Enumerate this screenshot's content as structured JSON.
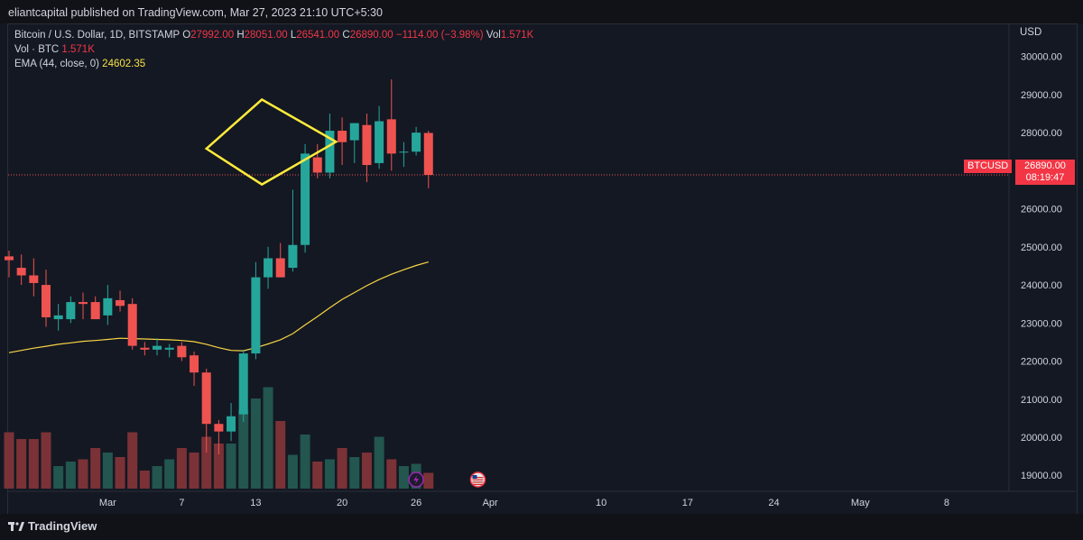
{
  "header": {
    "published": "eliantcapital published on TradingView.com, Mar 27, 2023 21:10 UTC+5:30"
  },
  "legend": {
    "symbol": "Bitcoin / U.S. Dollar, 1D, BITSTAMP",
    "o_label": "O",
    "o": "27992.00",
    "h_label": "H",
    "h": "28051.00",
    "l_label": "L",
    "l": "26541.00",
    "c_label": "C",
    "c": "26890.00",
    "change": "−1114.00 (−3.98%)",
    "vol_label": "Vol",
    "vol": "1.571K",
    "vol_line_label": "Vol · BTC",
    "vol_line_value": "1.571K",
    "ema_label": "EMA (44, close, 0)",
    "ema_value": "24602.35"
  },
  "axis": {
    "currency": "USD"
  },
  "price_tag": {
    "symbol": "BTCUSD",
    "price": "26890.00",
    "countdown": "08:19:47"
  },
  "footer": {
    "brand": "TradingView"
  },
  "colors": {
    "up": "#26a69a",
    "down": "#ef5350",
    "ema": "#f7d544",
    "pattern": "#ffeb3b",
    "background": "#131722"
  },
  "icons": {
    "flash": "lightning-icon",
    "flag": "us-flag-icon"
  },
  "chart_data": {
    "type": "candlestick",
    "ylim": [
      18650,
      30300
    ],
    "y_ticks": [
      19000,
      20000,
      21000,
      22000,
      23000,
      24000,
      25000,
      26000,
      27000,
      28000,
      29000,
      30000
    ],
    "y_tick_labels": [
      "19000.00",
      "20000.00",
      "21000.00",
      "22000.00",
      "23000.00",
      "24000.00",
      "25000.00",
      "26000.00",
      "27000.00",
      "28000.00",
      "29000.00",
      "30000.00"
    ],
    "x_labels": [
      {
        "label": "Mar",
        "i": 8
      },
      {
        "label": "7",
        "i": 14
      },
      {
        "label": "13",
        "i": 20
      },
      {
        "label": "20",
        "i": 27
      },
      {
        "label": "26",
        "i": 33
      },
      {
        "label": "Apr",
        "i": 39
      },
      {
        "label": "10",
        "i": 48
      },
      {
        "label": "17",
        "i": 55
      },
      {
        "label": "24",
        "i": 62
      },
      {
        "label": "May",
        "i": 69
      },
      {
        "label": "8",
        "i": 76
      }
    ],
    "candles": [
      {
        "o": 24750,
        "h": 24900,
        "l": 24200,
        "c": 24650
      },
      {
        "o": 24450,
        "h": 24800,
        "l": 24000,
        "c": 24250
      },
      {
        "o": 24250,
        "h": 24700,
        "l": 23700,
        "c": 24050
      },
      {
        "o": 24000,
        "h": 24400,
        "l": 22900,
        "c": 23150
      },
      {
        "o": 23100,
        "h": 23500,
        "l": 22800,
        "c": 23200
      },
      {
        "o": 23100,
        "h": 23700,
        "l": 23000,
        "c": 23550
      },
      {
        "o": 23550,
        "h": 23800,
        "l": 23100,
        "c": 23500
      },
      {
        "o": 23550,
        "h": 23700,
        "l": 23100,
        "c": 23100
      },
      {
        "o": 23200,
        "h": 24000,
        "l": 22950,
        "c": 23650
      },
      {
        "o": 23600,
        "h": 23850,
        "l": 23300,
        "c": 23450
      },
      {
        "o": 23500,
        "h": 23650,
        "l": 22300,
        "c": 22400
      },
      {
        "o": 22350,
        "h": 22500,
        "l": 22150,
        "c": 22300
      },
      {
        "o": 22300,
        "h": 22600,
        "l": 22150,
        "c": 22400
      },
      {
        "o": 22300,
        "h": 22450,
        "l": 22100,
        "c": 22350
      },
      {
        "o": 22400,
        "h": 22500,
        "l": 22000,
        "c": 22100
      },
      {
        "o": 22150,
        "h": 22250,
        "l": 21350,
        "c": 21700
      },
      {
        "o": 21700,
        "h": 21800,
        "l": 19600,
        "c": 20350
      },
      {
        "o": 20350,
        "h": 20450,
        "l": 19550,
        "c": 20150
      },
      {
        "o": 20150,
        "h": 20900,
        "l": 19900,
        "c": 20550
      },
      {
        "o": 20600,
        "h": 22300,
        "l": 20400,
        "c": 22200
      },
      {
        "o": 22200,
        "h": 24600,
        "l": 22050,
        "c": 24200
      },
      {
        "o": 24200,
        "h": 25000,
        "l": 23900,
        "c": 24700
      },
      {
        "o": 24700,
        "h": 25100,
        "l": 24200,
        "c": 24200
      },
      {
        "o": 24450,
        "h": 26500,
        "l": 24350,
        "c": 25050
      },
      {
        "o": 25050,
        "h": 27700,
        "l": 24850,
        "c": 27450
      },
      {
        "o": 27350,
        "h": 27700,
        "l": 26800,
        "c": 26950
      },
      {
        "o": 26950,
        "h": 28500,
        "l": 26800,
        "c": 28050
      },
      {
        "o": 28050,
        "h": 28400,
        "l": 27150,
        "c": 27750
      },
      {
        "o": 27800,
        "h": 28250,
        "l": 27200,
        "c": 28250
      },
      {
        "o": 28200,
        "h": 28500,
        "l": 26700,
        "c": 27150
      },
      {
        "o": 27200,
        "h": 28700,
        "l": 27050,
        "c": 28300
      },
      {
        "o": 28350,
        "h": 29400,
        "l": 27000,
        "c": 27450
      },
      {
        "o": 27500,
        "h": 27750,
        "l": 27100,
        "c": 27500
      },
      {
        "o": 27500,
        "h": 28150,
        "l": 27400,
        "c": 28000
      },
      {
        "o": 27992,
        "h": 28051,
        "l": 26541,
        "c": 26890
      }
    ],
    "volume": [
      25,
      22,
      22,
      25,
      10,
      12,
      13,
      18,
      16,
      14,
      25,
      8,
      10,
      13,
      18,
      16,
      23,
      20,
      20,
      35,
      40,
      45,
      30,
      15,
      24,
      12,
      13,
      18,
      14,
      16,
      23,
      13,
      10,
      11,
      7
    ],
    "ema": [
      22220,
      22280,
      22340,
      22390,
      22440,
      22480,
      22520,
      22540,
      22570,
      22600,
      22590,
      22580,
      22570,
      22560,
      22540,
      22510,
      22440,
      22350,
      22280,
      22270,
      22350,
      22450,
      22560,
      22720,
      22950,
      23170,
      23400,
      23620,
      23800,
      23980,
      24140,
      24280,
      24400,
      24510,
      24602.35
    ],
    "pattern": [
      [
        16,
        27580
      ],
      [
        20.5,
        28870
      ],
      [
        26.5,
        27760
      ],
      [
        20.5,
        26640
      ]
    ],
    "last_price": 26890
  }
}
